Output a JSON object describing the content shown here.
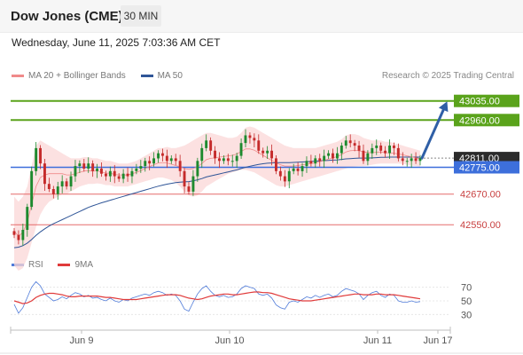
{
  "header": {
    "title": "Dow Jones (CME)",
    "timeframe": "30 MIN"
  },
  "datetime": "Wednesday, June 11, 2025 7:03:36 AM CET",
  "legend": {
    "ma20": "MA 20 + Bollinger Bands",
    "ma50": "MA 50",
    "credit": "Research © 2025 Trading Central"
  },
  "rsi_legend": {
    "rsi": "RSI",
    "ma9": "9MA"
  },
  "colors": {
    "resistance": "#5aa31b",
    "pivot": "#3d6fdb",
    "support": "#e56b6b",
    "current": "#333333",
    "bollinger": "#fbd7d7",
    "ma50": "#2f5597",
    "ma20": "#f08a8a",
    "rsi": "#4f7bd9",
    "rsi_ma": "#e03a3a",
    "arrow": "#2f5fa6"
  },
  "chart_data": [
    {
      "type": "candlestick",
      "y_range": [
        42450,
        43100
      ],
      "levels": [
        {
          "label": "43035.00",
          "value": 43035,
          "kind": "resistance"
        },
        {
          "label": "42960.00",
          "value": 42960,
          "kind": "resistance"
        },
        {
          "label": "42811.00",
          "value": 42811,
          "kind": "current"
        },
        {
          "label": "42775.00",
          "value": 42775,
          "kind": "pivot"
        },
        {
          "label": "42670.00",
          "value": 42670,
          "kind": "support"
        },
        {
          "label": "42550.00",
          "value": 42550,
          "kind": "support"
        }
      ],
      "x_labels": [
        "Jun 9",
        "Jun 10",
        "Jun 11",
        "Jun 17"
      ],
      "closes": [
        42510,
        42490,
        42530,
        42620,
        42760,
        42850,
        42790,
        42710,
        42690,
        42670,
        42700,
        42720,
        42700,
        42740,
        42780,
        42790,
        42770,
        42790,
        42760,
        42770,
        42750,
        42740,
        42760,
        42740,
        42730,
        42750,
        42740,
        42760,
        42770,
        42780,
        42800,
        42790,
        42810,
        42830,
        42820,
        42800,
        42810,
        42800,
        42760,
        42700,
        42680,
        42740,
        42800,
        42850,
        42880,
        42840,
        42810,
        42800,
        42810,
        42800,
        42800,
        42820,
        42870,
        42900,
        42890,
        42880,
        42840,
        42830,
        42840,
        42810,
        42760,
        42740,
        42720,
        42760,
        42770,
        42760,
        42780,
        42800,
        42790,
        42810,
        42800,
        42820,
        42830,
        42810,
        42830,
        42860,
        42880,
        42870,
        42860,
        42840,
        42800,
        42830,
        42850,
        42860,
        42840,
        42830,
        42860,
        42850,
        42810,
        42800,
        42800,
        42810,
        42800,
        42811
      ],
      "bollinger_upper": [
        42660,
        42640,
        42660,
        42700,
        42780,
        42860,
        42880,
        42870,
        42860,
        42850,
        42840,
        42830,
        42820,
        42810,
        42810,
        42810,
        42815,
        42815,
        42810,
        42810,
        42805,
        42800,
        42800,
        42795,
        42790,
        42790,
        42790,
        42795,
        42800,
        42810,
        42820,
        42830,
        42840,
        42850,
        42850,
        42855,
        42850,
        42850,
        42855,
        42860,
        42870,
        42880,
        42890,
        42900,
        42910,
        42910,
        42905,
        42900,
        42895,
        42890,
        42890,
        42895,
        42910,
        42930,
        42935,
        42930,
        42920,
        42910,
        42900,
        42890,
        42880,
        42870,
        42860,
        42855,
        42850,
        42850,
        42850,
        42850,
        42850,
        42850,
        42855,
        42860,
        42865,
        42870,
        42875,
        42885,
        42900,
        42905,
        42905,
        42900,
        42890,
        42885,
        42880,
        42880,
        42880,
        42875,
        42875,
        42870,
        42865,
        42860,
        42855,
        42850,
        42845,
        42840
      ],
      "bollinger_lower": [
        42390,
        42370,
        42380,
        42420,
        42480,
        42540,
        42590,
        42620,
        42640,
        42650,
        42660,
        42670,
        42670,
        42680,
        42690,
        42700,
        42705,
        42710,
        42710,
        42712,
        42710,
        42705,
        42705,
        42700,
        42700,
        42700,
        42700,
        42705,
        42710,
        42715,
        42720,
        42725,
        42730,
        42735,
        42735,
        42730,
        42725,
        42715,
        42700,
        42680,
        42665,
        42660,
        42665,
        42680,
        42700,
        42710,
        42720,
        42730,
        42740,
        42750,
        42755,
        42760,
        42765,
        42765,
        42760,
        42755,
        42745,
        42735,
        42725,
        42715,
        42705,
        42700,
        42700,
        42705,
        42710,
        42715,
        42720,
        42725,
        42730,
        42735,
        42740,
        42745,
        42750,
        42755,
        42760,
        42765,
        42770,
        42775,
        42778,
        42780,
        42780,
        42782,
        42785,
        42788,
        42790,
        42790,
        42790,
        42790,
        42790,
        42788,
        42785,
        42782,
        42780,
        42778
      ],
      "ma20": [
        42525,
        42505,
        42520,
        42560,
        42630,
        42700,
        42735,
        42745,
        42750,
        42750,
        42750,
        42750,
        42745,
        42745,
        42750,
        42755,
        42760,
        42762,
        42760,
        42761,
        42757,
        42752,
        42752,
        42747,
        42745,
        42745,
        42745,
        42750,
        42755,
        42762,
        42770,
        42778,
        42785,
        42792,
        42792,
        42792,
        42787,
        42782,
        42777,
        42770,
        42767,
        42770,
        42777,
        42790,
        42805,
        42810,
        42812,
        42815,
        42817,
        42820,
        42822,
        42827,
        42837,
        42847,
        42847,
        42842,
        42832,
        42822,
        42812,
        42802,
        42792,
        42785,
        42780,
        42780,
        42780,
        42782,
        42785,
        42787,
        42790,
        42792,
        42797,
        42802,
        42807,
        42812,
        42817,
        42825,
        42835,
        42840,
        42841,
        42840,
        42835,
        42833,
        42832,
        42834,
        42835,
        42832,
        42832,
        42830,
        42827,
        42824,
        42820,
        42816,
        42812,
        42809
      ],
      "ma50": [
        42460,
        42462,
        42468,
        42478,
        42492,
        42508,
        42522,
        42534,
        42545,
        42554,
        42562,
        42570,
        42578,
        42586,
        42594,
        42602,
        42610,
        42618,
        42624,
        42630,
        42636,
        42641,
        42646,
        42651,
        42656,
        42661,
        42666,
        42671,
        42676,
        42681,
        42686,
        42691,
        42696,
        42701,
        42705,
        42709,
        42712,
        42715,
        42717,
        42718,
        42719,
        42722,
        42726,
        42731,
        42737,
        42741,
        42745,
        42749,
        42753,
        42757,
        42761,
        42765,
        42770,
        42775,
        42779,
        42783,
        42786,
        42789,
        42791,
        42792,
        42793,
        42793,
        42793,
        42793,
        42794,
        42795,
        42796,
        42797,
        42798,
        42799,
        42800,
        42801,
        42802,
        42803,
        42804,
        42806,
        42808,
        42809,
        42810,
        42811,
        42811,
        42811,
        42812,
        42813,
        42814,
        42814,
        42815,
        42815,
        42815,
        42815,
        42815,
        42815,
        42815,
        42815
      ]
    },
    {
      "type": "line",
      "y_ticks": [
        70,
        50,
        30
      ],
      "y_range": [
        15,
        85
      ],
      "series": [
        {
          "name": "RSI",
          "values": [
            45,
            32,
            40,
            55,
            70,
            78,
            72,
            60,
            55,
            50,
            52,
            56,
            53,
            58,
            62,
            60,
            56,
            58,
            54,
            55,
            52,
            50,
            54,
            50,
            48,
            52,
            50,
            54,
            56,
            58,
            60,
            58,
            62,
            64,
            62,
            58,
            60,
            58,
            50,
            38,
            35,
            48,
            60,
            68,
            72,
            64,
            58,
            56,
            58,
            55,
            56,
            60,
            68,
            72,
            70,
            68,
            60,
            58,
            60,
            54,
            44,
            40,
            38,
            48,
            50,
            48,
            52,
            56,
            54,
            58,
            55,
            58,
            60,
            56,
            58,
            64,
            68,
            66,
            64,
            60,
            52,
            58,
            62,
            64,
            58,
            55,
            60,
            58,
            50,
            48,
            48,
            50,
            48,
            49
          ]
        },
        {
          "name": "9MA",
          "values": [
            50,
            48,
            46,
            47,
            50,
            55,
            58,
            60,
            61,
            61,
            60,
            59,
            57,
            56,
            56,
            57,
            57,
            57,
            57,
            57,
            56,
            55,
            55,
            54,
            53,
            52,
            52,
            52,
            52,
            53,
            54,
            55,
            56,
            57,
            58,
            59,
            59,
            59,
            58,
            56,
            54,
            53,
            52,
            53,
            55,
            57,
            58,
            59,
            60,
            60,
            59,
            59,
            60,
            61,
            62,
            63,
            63,
            62,
            62,
            61,
            59,
            57,
            55,
            53,
            52,
            51,
            50,
            50,
            50,
            51,
            52,
            53,
            54,
            55,
            56,
            57,
            58,
            59,
            60,
            60,
            59,
            59,
            59,
            60,
            60,
            59,
            59,
            59,
            58,
            57,
            56,
            55,
            54,
            53
          ]
        }
      ]
    }
  ]
}
